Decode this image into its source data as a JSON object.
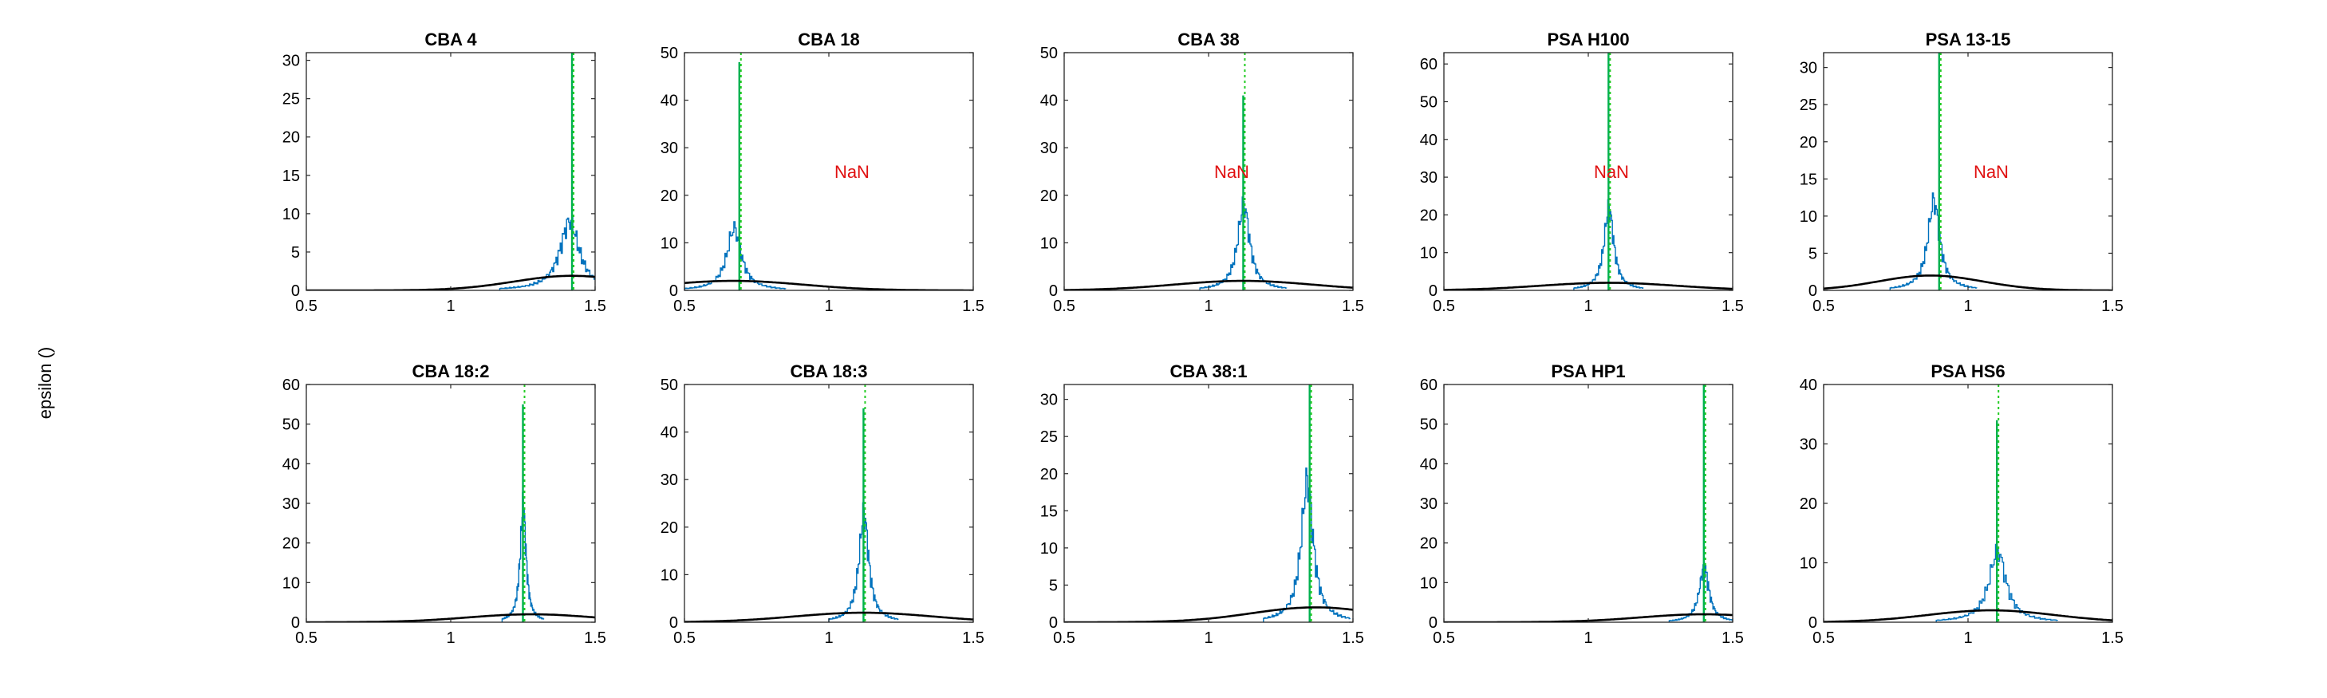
{
  "figure": {
    "ylabel": "epsilon ()"
  },
  "chart_data": [
    {
      "type": "line",
      "title": "CBA 4",
      "xlim": [
        0.5,
        1.5
      ],
      "ylim": [
        0,
        31
      ],
      "xticks": [
        0.5,
        1,
        1.5
      ],
      "yticks": [
        0,
        5,
        10,
        15,
        20,
        25,
        30
      ],
      "grid": false,
      "series": [
        {
          "style": "histogram",
          "color": "#0072bd",
          "peak_x": 1.41,
          "peak_y": 9,
          "width": 0.04
        },
        {
          "style": "spike",
          "color": "#00b050",
          "x": 1.42,
          "y": 31
        },
        {
          "style": "reference-line",
          "color": "#22cc22",
          "x": 1.42
        },
        {
          "style": "gaussian",
          "color": "#000000",
          "mean": 1.42,
          "sd": 0.2,
          "peak": 1.9
        }
      ],
      "annotation": ""
    },
    {
      "type": "line",
      "title": "CBA 18",
      "xlim": [
        0.5,
        1.5
      ],
      "ylim": [
        0,
        50
      ],
      "xticks": [
        0.5,
        1,
        1.5
      ],
      "yticks": [
        0,
        10,
        20,
        30,
        40,
        50
      ],
      "grid": false,
      "series": [
        {
          "style": "histogram",
          "color": "#0072bd",
          "peak_x": 0.67,
          "peak_y": 13,
          "width": 0.03
        },
        {
          "style": "spike",
          "color": "#00b050",
          "x": 0.69,
          "y": 48
        },
        {
          "style": "reference-line",
          "color": "#22cc22",
          "x": 0.69
        },
        {
          "style": "gaussian",
          "color": "#000000",
          "mean": 0.67,
          "sd": 0.24,
          "peak": 2.0
        }
      ],
      "annotation": "NaN",
      "annotation_pos": [
        1.08,
        25
      ]
    },
    {
      "type": "line",
      "title": "CBA 38",
      "xlim": [
        0.5,
        1.5
      ],
      "ylim": [
        0,
        50
      ],
      "xticks": [
        0.5,
        1,
        1.5
      ],
      "yticks": [
        0,
        10,
        20,
        30,
        40,
        50
      ],
      "grid": false,
      "series": [
        {
          "style": "histogram",
          "color": "#0072bd",
          "peak_x": 1.12,
          "peak_y": 18,
          "width": 0.025
        },
        {
          "style": "spike",
          "color": "#00b050",
          "x": 1.12,
          "y": 41
        },
        {
          "style": "reference-line",
          "color": "#22cc22",
          "x": 1.12
        },
        {
          "style": "gaussian",
          "color": "#000000",
          "mean": 1.12,
          "sd": 0.24,
          "peak": 2.0
        }
      ],
      "annotation": "NaN",
      "annotation_pos": [
        1.08,
        25
      ]
    },
    {
      "type": "line",
      "title": "PSA H100",
      "xlim": [
        0.5,
        1.5
      ],
      "ylim": [
        0,
        63
      ],
      "xticks": [
        0.5,
        1,
        1.5
      ],
      "yticks": [
        0,
        10,
        20,
        30,
        40,
        50,
        60
      ],
      "grid": false,
      "series": [
        {
          "style": "histogram",
          "color": "#0072bd",
          "peak_x": 1.07,
          "peak_y": 22,
          "width": 0.02
        },
        {
          "style": "spike",
          "color": "#00b050",
          "x": 1.07,
          "y": 63
        },
        {
          "style": "reference-line",
          "color": "#22cc22",
          "x": 1.07
        },
        {
          "style": "gaussian",
          "color": "#000000",
          "mean": 1.07,
          "sd": 0.24,
          "peak": 2.0
        }
      ],
      "annotation": "NaN",
      "annotation_pos": [
        1.08,
        31.5
      ]
    },
    {
      "type": "line",
      "title": "PSA 13-15",
      "xlim": [
        0.5,
        1.5
      ],
      "ylim": [
        0,
        32
      ],
      "xticks": [
        0.5,
        1,
        1.5
      ],
      "yticks": [
        0,
        5,
        10,
        15,
        20,
        25,
        30
      ],
      "grid": false,
      "series": [
        {
          "style": "histogram",
          "color": "#0072bd",
          "peak_x": 0.88,
          "peak_y": 12,
          "width": 0.025
        },
        {
          "style": "spike",
          "color": "#00b050",
          "x": 0.9,
          "y": 32
        },
        {
          "style": "reference-line",
          "color": "#22cc22",
          "x": 0.9
        },
        {
          "style": "gaussian",
          "color": "#000000",
          "mean": 0.87,
          "sd": 0.18,
          "peak": 2.0
        }
      ],
      "annotation": "NaN",
      "annotation_pos": [
        1.08,
        16
      ]
    },
    {
      "type": "line",
      "title": "CBA 18:2",
      "xlim": [
        0.5,
        1.5
      ],
      "ylim": [
        0,
        60
      ],
      "xticks": [
        0.5,
        1,
        1.5
      ],
      "yticks": [
        0,
        10,
        20,
        30,
        40,
        50,
        60
      ],
      "grid": false,
      "series": [
        {
          "style": "histogram",
          "color": "#0072bd",
          "peak_x": 1.25,
          "peak_y": 30,
          "width": 0.012
        },
        {
          "style": "spike",
          "color": "#00b050",
          "x": 1.25,
          "y": 55
        },
        {
          "style": "reference-line",
          "color": "#22cc22",
          "x": 1.25
        },
        {
          "style": "gaussian",
          "color": "#000000",
          "mean": 1.28,
          "sd": 0.22,
          "peak": 2.0
        }
      ],
      "annotation": ""
    },
    {
      "type": "line",
      "title": "CBA 18:3",
      "xlim": [
        0.5,
        1.5
      ],
      "ylim": [
        0,
        50
      ],
      "xticks": [
        0.5,
        1,
        1.5
      ],
      "yticks": [
        0,
        10,
        20,
        30,
        40,
        50
      ],
      "grid": false,
      "series": [
        {
          "style": "histogram",
          "color": "#0072bd",
          "peak_x": 1.12,
          "peak_y": 23,
          "width": 0.02
        },
        {
          "style": "spike",
          "color": "#00b050",
          "x": 1.12,
          "y": 45
        },
        {
          "style": "reference-line",
          "color": "#22cc22",
          "x": 1.12
        },
        {
          "style": "gaussian",
          "color": "#000000",
          "mean": 1.12,
          "sd": 0.24,
          "peak": 2.0
        }
      ],
      "annotation": ""
    },
    {
      "type": "line",
      "title": "CBA 38:1",
      "xlim": [
        0.5,
        1.5
      ],
      "ylim": [
        0,
        32
      ],
      "xticks": [
        0.5,
        1,
        1.5
      ],
      "yticks": [
        0,
        5,
        10,
        15,
        20,
        25,
        30
      ],
      "grid": false,
      "series": [
        {
          "style": "histogram",
          "color": "#0072bd",
          "peak_x": 1.34,
          "peak_y": 19,
          "width": 0.025
        },
        {
          "style": "spike",
          "color": "#00b050",
          "x": 1.35,
          "y": 32
        },
        {
          "style": "reference-line",
          "color": "#22cc22",
          "x": 1.35
        },
        {
          "style": "gaussian",
          "color": "#000000",
          "mean": 1.37,
          "sd": 0.22,
          "peak": 2.0
        }
      ],
      "annotation": ""
    },
    {
      "type": "line",
      "title": "PSA HP1",
      "xlim": [
        0.5,
        1.5
      ],
      "ylim": [
        0,
        60
      ],
      "xticks": [
        0.5,
        1,
        1.5
      ],
      "yticks": [
        0,
        10,
        20,
        30,
        40,
        50,
        60
      ],
      "grid": false,
      "series": [
        {
          "style": "histogram",
          "color": "#0072bd",
          "peak_x": 1.4,
          "peak_y": 14,
          "width": 0.02
        },
        {
          "style": "spike",
          "color": "#00b050",
          "x": 1.4,
          "y": 60
        },
        {
          "style": "reference-line",
          "color": "#22cc22",
          "x": 1.4
        },
        {
          "style": "gaussian",
          "color": "#000000",
          "mean": 1.4,
          "sd": 0.22,
          "peak": 2.0
        }
      ],
      "annotation": ""
    },
    {
      "type": "line",
      "title": "PSA HS6",
      "xlim": [
        0.5,
        1.5
      ],
      "ylim": [
        0,
        40
      ],
      "xticks": [
        0.5,
        1,
        1.5
      ],
      "yticks": [
        0,
        10,
        20,
        30,
        40
      ],
      "grid": false,
      "series": [
        {
          "style": "histogram",
          "color": "#0072bd",
          "peak_x": 1.1,
          "peak_y": 12,
          "width": 0.035
        },
        {
          "style": "spike",
          "color": "#00b050",
          "x": 1.1,
          "y": 34
        },
        {
          "style": "reference-line",
          "color": "#22cc22",
          "x": 1.1
        },
        {
          "style": "gaussian",
          "color": "#000000",
          "mean": 1.08,
          "sd": 0.22,
          "peak": 2.0
        }
      ],
      "annotation": ""
    }
  ]
}
